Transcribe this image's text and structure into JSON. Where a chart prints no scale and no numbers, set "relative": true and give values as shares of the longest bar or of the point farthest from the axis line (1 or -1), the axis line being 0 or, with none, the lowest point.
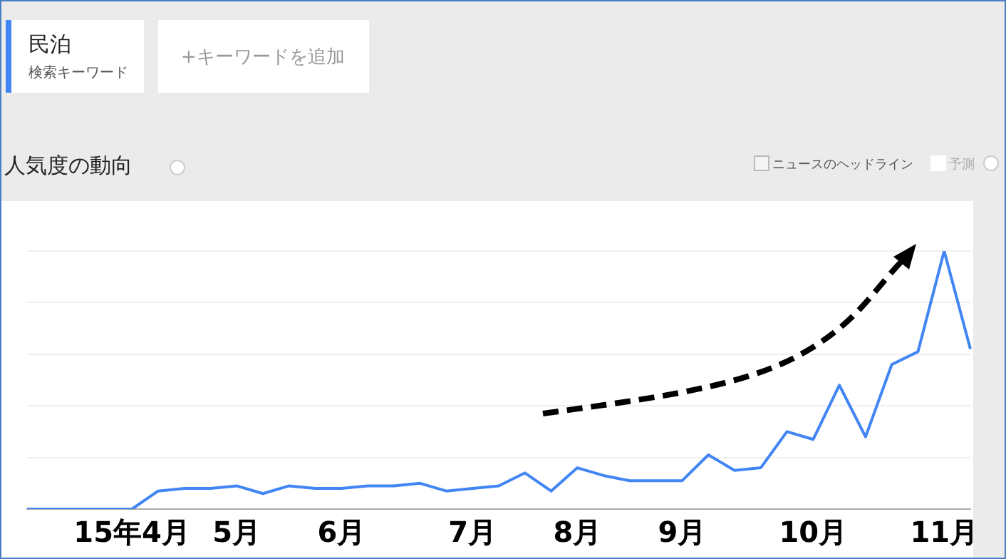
{
  "chart_data": {
    "type": "line",
    "title": "人気度の動向",
    "relative": true,
    "grid": "y",
    "legend": false,
    "marker": "none",
    "line_style": "solid",
    "categories": [
      null,
      null,
      null,
      null,
      "15年4月",
      null,
      null,
      null,
      "5月",
      null,
      null,
      null,
      "6月",
      null,
      null,
      null,
      null,
      "7月",
      null,
      null,
      null,
      "8月",
      null,
      null,
      null,
      "9月",
      null,
      null,
      null,
      null,
      "10月",
      null,
      null,
      null,
      null,
      "11月",
      null
    ],
    "series": [
      {
        "name": "民泊",
        "color": "#4285f4",
        "values": [
          0,
          0,
          0,
          0,
          0,
          0.07,
          0.08,
          0.08,
          0.09,
          0.06,
          0.09,
          0.08,
          0.08,
          0.09,
          0.09,
          0.1,
          0.07,
          0.08,
          0.09,
          0.14,
          0.07,
          0.16,
          0.13,
          0.11,
          0.11,
          0.11,
          0.21,
          0.15,
          0.16,
          0.3,
          0.27,
          0.48,
          0.28,
          0.56,
          0.61,
          1,
          0.62
        ]
      }
    ],
    "annotations": [
      "検索キーワード",
      "+キーワードを追加",
      "ニュースのヘッドライン",
      "予測"
    ]
  }
}
